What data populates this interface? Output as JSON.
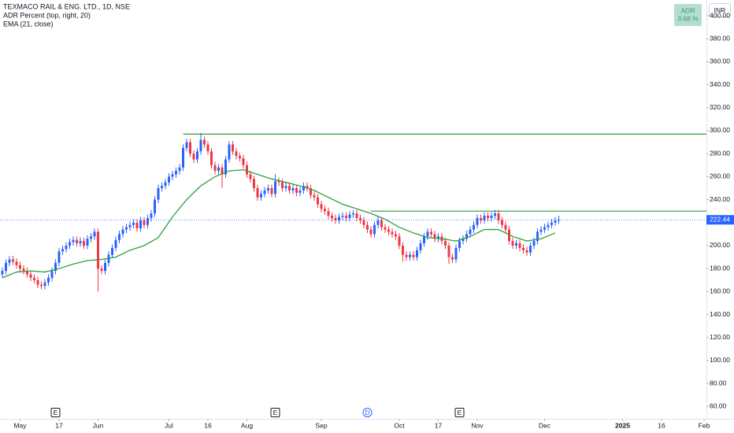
{
  "chart_data": {
    "type": "candlestick",
    "title": "TEXMACO RAIL & ENG. LTD., 1D, NSE",
    "indicators": [
      "ADR Percent (top, right, 20)",
      "EMA (21, close)"
    ],
    "adr_box": {
      "name": "ADR",
      "value_label": "3.68 %"
    },
    "currency": "INR",
    "up_color": "#2962ff",
    "down_color": "#f23645",
    "open": [
      175,
      178,
      185,
      188,
      186,
      183,
      180,
      178,
      175,
      172,
      170,
      166,
      165,
      168,
      172,
      178,
      185,
      195,
      197,
      200,
      203,
      205,
      202,
      204,
      200,
      206,
      208,
      212,
      180,
      178,
      185,
      192,
      198,
      205,
      210,
      214,
      216,
      218,
      220,
      215,
      222,
      218,
      224,
      228,
      240,
      250,
      252,
      255,
      260,
      262,
      265,
      268,
      285,
      290,
      280,
      275,
      282,
      292,
      288,
      282,
      270,
      265,
      268,
      262,
      275,
      288,
      282,
      278,
      276,
      270,
      262,
      258,
      250,
      242,
      245,
      248,
      250,
      245,
      256,
      255,
      250,
      252,
      248,
      250,
      246,
      248,
      252,
      250,
      244,
      242,
      236,
      232,
      230,
      226,
      224,
      222,
      225,
      226,
      224,
      227,
      228,
      224,
      222,
      218,
      214,
      210,
      218,
      222,
      216,
      214,
      212,
      210,
      208,
      200,
      192,
      190,
      192,
      190,
      196,
      202,
      208,
      212,
      210,
      206,
      208,
      204,
      200,
      190,
      188,
      198,
      204,
      206,
      210,
      214,
      218,
      224,
      222,
      226,
      224,
      226,
      228,
      222,
      218,
      214,
      204,
      200,
      202,
      198,
      196,
      194,
      200,
      204,
      212,
      214,
      216,
      218,
      220,
      222
    ],
    "high": [
      181,
      188,
      191,
      191,
      189,
      186,
      183,
      181,
      178,
      175,
      173,
      169,
      171,
      175,
      181,
      188,
      198,
      200,
      203,
      206,
      208,
      208,
      207,
      207,
      209,
      211,
      215,
      215,
      183,
      188,
      195,
      201,
      208,
      213,
      217,
      219,
      221,
      223,
      223,
      225,
      225,
      227,
      231,
      243,
      253,
      255,
      258,
      263,
      265,
      268,
      271,
      288,
      293,
      293,
      283,
      285,
      298,
      295,
      291,
      285,
      273,
      271,
      271,
      278,
      291,
      291,
      285,
      281,
      279,
      273,
      265,
      261,
      253,
      248,
      251,
      253,
      253,
      262,
      259,
      258,
      255,
      255,
      253,
      253,
      251,
      255,
      255,
      253,
      247,
      245,
      239,
      235,
      233,
      229,
      227,
      228,
      229,
      229,
      230,
      231,
      231,
      227,
      225,
      221,
      217,
      221,
      225,
      225,
      219,
      217,
      215,
      213,
      211,
      203,
      195,
      195,
      195,
      199,
      205,
      211,
      215,
      215,
      213,
      211,
      211,
      207,
      203,
      193,
      201,
      207,
      209,
      213,
      217,
      221,
      227,
      227,
      229,
      229,
      229,
      231,
      231,
      225,
      221,
      217,
      207,
      205,
      205,
      201,
      199,
      203,
      207,
      215,
      217,
      219,
      221,
      223,
      225,
      226
    ],
    "low": [
      172,
      175,
      182,
      183,
      180,
      177,
      175,
      172,
      169,
      167,
      163,
      162,
      162,
      165,
      169,
      175,
      182,
      192,
      194,
      197,
      200,
      199,
      199,
      197,
      197,
      203,
      205,
      160,
      175,
      175,
      182,
      189,
      195,
      202,
      207,
      211,
      213,
      215,
      212,
      212,
      215,
      215,
      221,
      225,
      237,
      247,
      249,
      252,
      257,
      259,
      262,
      265,
      282,
      277,
      272,
      272,
      279,
      285,
      279,
      267,
      262,
      262,
      250,
      259,
      272,
      279,
      275,
      273,
      267,
      259,
      255,
      247,
      239,
      239,
      242,
      245,
      242,
      242,
      252,
      247,
      247,
      245,
      245,
      243,
      243,
      245,
      247,
      241,
      239,
      233,
      229,
      227,
      223,
      221,
      219,
      219,
      222,
      221,
      221,
      224,
      221,
      219,
      215,
      211,
      207,
      207,
      215,
      213,
      211,
      209,
      207,
      205,
      197,
      186,
      187,
      187,
      187,
      187,
      193,
      199,
      205,
      207,
      203,
      203,
      201,
      197,
      184,
      185,
      185,
      195,
      201,
      203,
      207,
      211,
      215,
      219,
      219,
      221,
      221,
      223,
      219,
      215,
      211,
      201,
      197,
      197,
      195,
      193,
      191,
      191,
      197,
      201,
      209,
      211,
      213,
      215,
      217,
      219
    ],
    "close": [
      178,
      185,
      188,
      186,
      183,
      180,
      178,
      175,
      172,
      170,
      166,
      165,
      168,
      172,
      178,
      185,
      195,
      197,
      200,
      203,
      205,
      202,
      204,
      200,
      206,
      208,
      212,
      180,
      178,
      185,
      192,
      198,
      205,
      210,
      214,
      216,
      218,
      220,
      215,
      222,
      218,
      224,
      228,
      240,
      250,
      252,
      255,
      260,
      262,
      265,
      268,
      285,
      290,
      280,
      275,
      282,
      292,
      288,
      282,
      270,
      265,
      268,
      262,
      275,
      288,
      282,
      278,
      276,
      270,
      262,
      258,
      250,
      242,
      245,
      248,
      250,
      245,
      256,
      255,
      250,
      252,
      248,
      250,
      246,
      248,
      252,
      250,
      244,
      242,
      236,
      232,
      230,
      226,
      224,
      222,
      225,
      226,
      224,
      227,
      228,
      224,
      222,
      218,
      214,
      210,
      218,
      222,
      216,
      214,
      212,
      210,
      208,
      200,
      192,
      190,
      192,
      190,
      196,
      202,
      208,
      212,
      210,
      206,
      208,
      204,
      200,
      190,
      188,
      198,
      204,
      206,
      210,
      214,
      218,
      224,
      222,
      226,
      224,
      226,
      228,
      222,
      218,
      214,
      204,
      200,
      202,
      198,
      196,
      194,
      200,
      204,
      212,
      214,
      216,
      218,
      220,
      222,
      222.44
    ],
    "last_price_label": "222.44",
    "ema": {
      "color": "#2e9e3e",
      "x": [
        0,
        4,
        8,
        12,
        16,
        20,
        24,
        28,
        32,
        36,
        40,
        44,
        48,
        52,
        56,
        60,
        64,
        68,
        72,
        76,
        80,
        84,
        88,
        92,
        96,
        100,
        104,
        108,
        112,
        116,
        120,
        124,
        128,
        132,
        136,
        140,
        144,
        148,
        152,
        156
      ],
      "values": [
        172,
        177,
        178,
        177,
        180,
        184,
        187,
        188,
        190,
        196,
        200,
        207,
        225,
        240,
        252,
        260,
        265,
        266,
        262,
        258,
        255,
        252,
        248,
        242,
        236,
        232,
        228,
        223,
        216,
        211,
        207,
        206,
        204,
        208,
        214,
        214,
        208,
        204,
        206,
        211
      ]
    },
    "hlines": [
      {
        "value": 297,
        "x_start": 51,
        "color": "#2e9e3e"
      },
      {
        "value": 230,
        "x_start": 104,
        "color": "#2e9e3e"
      }
    ],
    "events": [
      {
        "label": "E",
        "x": 15
      },
      {
        "label": "E",
        "x": 77
      },
      {
        "label": "D",
        "x": 103
      },
      {
        "label": "E",
        "x": 129
      }
    ],
    "xlim": [
      -0.667,
      198.67
    ],
    "xticks": [
      {
        "value": 5,
        "label": "May"
      },
      {
        "value": 16,
        "label": "17"
      },
      {
        "value": 27,
        "label": "Jun"
      },
      {
        "value": 47,
        "label": "Jul"
      },
      {
        "value": 58,
        "label": "16"
      },
      {
        "value": 69,
        "label": "Aug"
      },
      {
        "value": 90,
        "label": "Sep"
      },
      {
        "value": 112,
        "label": "Oct"
      },
      {
        "value": 123,
        "label": "17"
      },
      {
        "value": 134,
        "label": "Nov"
      },
      {
        "value": 153,
        "label": "Dec"
      },
      {
        "value": 175,
        "label": "2025"
      },
      {
        "value": 186,
        "label": "16"
      },
      {
        "value": 198,
        "label": "Feb"
      }
    ],
    "bold_xtick": 11,
    "ylim": [
      49.3,
      413.7
    ],
    "yticks": [
      {
        "value": 60,
        "label": "60.00"
      },
      {
        "value": 80,
        "label": "80.00"
      },
      {
        "value": 100,
        "label": "100.00"
      },
      {
        "value": 120,
        "label": "120.00"
      },
      {
        "value": 140,
        "label": "140.00"
      },
      {
        "value": 160,
        "label": "160.00"
      },
      {
        "value": 180,
        "label": "180.00"
      },
      {
        "value": 200,
        "label": "200.00"
      },
      {
        "value": 220,
        "label": "220.00"
      },
      {
        "value": 240,
        "label": "240.00"
      },
      {
        "value": 260,
        "label": "260.00"
      },
      {
        "value": 280,
        "label": "280.00"
      },
      {
        "value": 300,
        "label": "300.00"
      },
      {
        "value": 320,
        "label": "320.00"
      },
      {
        "value": 340,
        "label": "340.00"
      },
      {
        "value": 360,
        "label": "360.00"
      },
      {
        "value": 380,
        "label": "380.00"
      },
      {
        "value": 400,
        "label": "400.00"
      }
    ]
  }
}
